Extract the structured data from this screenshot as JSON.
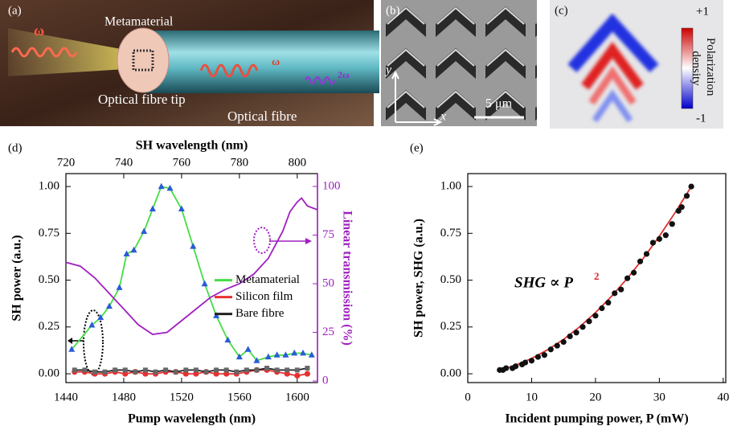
{
  "panels": {
    "a": {
      "label": "(a)",
      "omega_in": "ω",
      "metamaterial": "Metamaterial",
      "omega_out": "ω",
      "second_harmonic": "2ω",
      "tip": "Optical fibre tip",
      "fibre": "Optical fibre"
    },
    "b": {
      "label": "(b)",
      "y_axis": "y",
      "x_axis": "x",
      "scale": "5 μm"
    },
    "c": {
      "label": "(c)",
      "clim": [
        -1,
        1
      ],
      "cticks": [
        {
          "value": 1,
          "label": "+1"
        },
        -1
      ],
      "colorbar_label": [
        "Polarization",
        "density"
      ]
    }
  },
  "chart_data": [
    {
      "type": "line",
      "panel": "(d)",
      "title": "SH wavelength (nm)",
      "xlabel": "Pump wavelength (nm)",
      "ylabel": "SH power (a.u.)",
      "y2label": "Linear transmission (%)",
      "y2color": "#a020c0",
      "xlim": [
        1440,
        1614
      ],
      "xticks": [
        1440,
        1480,
        1520,
        1560,
        1600
      ],
      "x2lim": [
        720,
        807
      ],
      "x2ticks": [
        720,
        740,
        760,
        780,
        800
      ],
      "ylim": [
        -0.047,
        1.069
      ],
      "yticks": [
        {
          "value": 0,
          "label": "0.00"
        },
        {
          "value": 0.25,
          "label": "0.25"
        },
        {
          "value": 0.5,
          "label": "0.50"
        },
        {
          "value": 0.75,
          "label": "0.75"
        },
        {
          "value": 1,
          "label": "1.00"
        }
      ],
      "y2lim": [
        -0.8,
        106.6
      ],
      "y2ticks": [
        0,
        25,
        50,
        75,
        100
      ],
      "legend": "right",
      "series": [
        {
          "name": "Metamaterial",
          "color": "#44dd44",
          "marker": "triangle",
          "marker_color": "#2a5bd7",
          "line": true,
          "x": [
            1444,
            1458,
            1464,
            1470,
            1477,
            1482,
            1487,
            1494,
            1500,
            1506,
            1512,
            1520,
            1528,
            1536,
            1544,
            1552,
            1560,
            1566,
            1572,
            1580,
            1586,
            1592,
            1598,
            1604,
            1610
          ],
          "values": [
            0.13,
            0.26,
            0.3,
            0.36,
            0.46,
            0.64,
            0.66,
            0.76,
            0.88,
            1.0,
            0.99,
            0.88,
            0.68,
            0.48,
            0.31,
            0.18,
            0.09,
            0.13,
            0.07,
            0.09,
            0.1,
            0.1,
            0.11,
            0.11,
            0.1
          ]
        },
        {
          "name": "Silicon film",
          "color": "#e83030",
          "marker": "circle",
          "marker_color": "#e83030",
          "line": true,
          "x": [
            1446,
            1453,
            1460,
            1467,
            1474,
            1481,
            1488,
            1495,
            1502,
            1509,
            1516,
            1523,
            1530,
            1537,
            1544,
            1551,
            1558,
            1565,
            1572,
            1579,
            1586,
            1593,
            1600,
            1607
          ],
          "values": [
            0.01,
            0.01,
            0.0,
            0.0,
            0.01,
            0.0,
            0.01,
            0.0,
            0.0,
            0.01,
            0.01,
            0.0,
            0.0,
            0.01,
            0.0,
            0.0,
            0.0,
            0.01,
            0.02,
            0.02,
            0.01,
            0.0,
            -0.01,
            0.0
          ]
        },
        {
          "name": "Bare fibre",
          "color": "#222222",
          "marker": "square",
          "marker_color": "#666666",
          "line": true,
          "x": [
            1446,
            1453,
            1460,
            1467,
            1474,
            1481,
            1488,
            1495,
            1502,
            1509,
            1516,
            1523,
            1530,
            1537,
            1544,
            1551,
            1558,
            1565,
            1572,
            1579,
            1586,
            1593,
            1600,
            1607
          ],
          "values": [
            0.02,
            0.02,
            0.01,
            0.01,
            0.02,
            0.02,
            0.01,
            0.02,
            0.01,
            0.02,
            0.01,
            0.02,
            0.02,
            0.01,
            0.02,
            0.02,
            0.01,
            0.02,
            0.02,
            0.03,
            0.02,
            0.02,
            0.02,
            0.03
          ]
        },
        {
          "color": "#a020c0",
          "axis": "y2",
          "line": true,
          "x": [
            1440,
            1450,
            1460,
            1470,
            1480,
            1490,
            1500,
            1510,
            1520,
            1530,
            1540,
            1550,
            1560,
            1570,
            1580,
            1585,
            1590,
            1595,
            1600,
            1603,
            1607,
            1614
          ],
          "values": [
            61,
            59,
            53,
            45,
            37,
            29,
            24,
            25,
            31,
            37,
            43,
            47,
            50,
            55,
            63,
            70,
            77,
            87,
            92,
            94,
            90,
            88
          ]
        }
      ]
    },
    {
      "type": "scatter",
      "panel": "(e)",
      "xlabel": "Incident pumping power, P (mW)",
      "ylabel": "SH power, SHG (a.u.)",
      "annotation": "SHG ∝ P",
      "annotation_exponent": "2",
      "xlim": [
        0,
        40.4
      ],
      "xticks": [
        0,
        10,
        20,
        30,
        40
      ],
      "ylim": [
        -0.047,
        1.069
      ],
      "yticks": [
        {
          "value": 0,
          "label": "0.00"
        },
        {
          "value": 0.25,
          "label": "0.25"
        },
        {
          "value": 0.5,
          "label": "0.50"
        },
        {
          "value": 0.75,
          "label": "0.75"
        },
        {
          "value": 1,
          "label": "1.00"
        }
      ],
      "series": [
        {
          "color": "#e03030",
          "line": true,
          "x": [
            5,
            7.5,
            10,
            12.5,
            15,
            17.5,
            20,
            22.5,
            25,
            27.5,
            30,
            32.5,
            35
          ],
          "values": [
            0.02,
            0.046,
            0.082,
            0.128,
            0.184,
            0.25,
            0.327,
            0.413,
            0.51,
            0.617,
            0.735,
            0.862,
            1.0
          ]
        },
        {
          "color": "#111111",
          "marker": "circle",
          "marker_color": "#111111",
          "line": false,
          "x": [
            5,
            5.5,
            6,
            7,
            7.5,
            8.5,
            9,
            10,
            11,
            12,
            13,
            14,
            15,
            16,
            17,
            18,
            19,
            20,
            21,
            22,
            23,
            24,
            25,
            26,
            27,
            28,
            29,
            30,
            31,
            32,
            33,
            33.5,
            34.3,
            35
          ],
          "values": [
            0.02,
            0.02,
            0.03,
            0.03,
            0.04,
            0.05,
            0.06,
            0.07,
            0.09,
            0.1,
            0.13,
            0.15,
            0.17,
            0.2,
            0.22,
            0.25,
            0.28,
            0.31,
            0.35,
            0.38,
            0.43,
            0.45,
            0.51,
            0.54,
            0.6,
            0.64,
            0.7,
            0.72,
            0.74,
            0.8,
            0.87,
            0.89,
            0.95,
            1.0
          ]
        }
      ]
    }
  ]
}
